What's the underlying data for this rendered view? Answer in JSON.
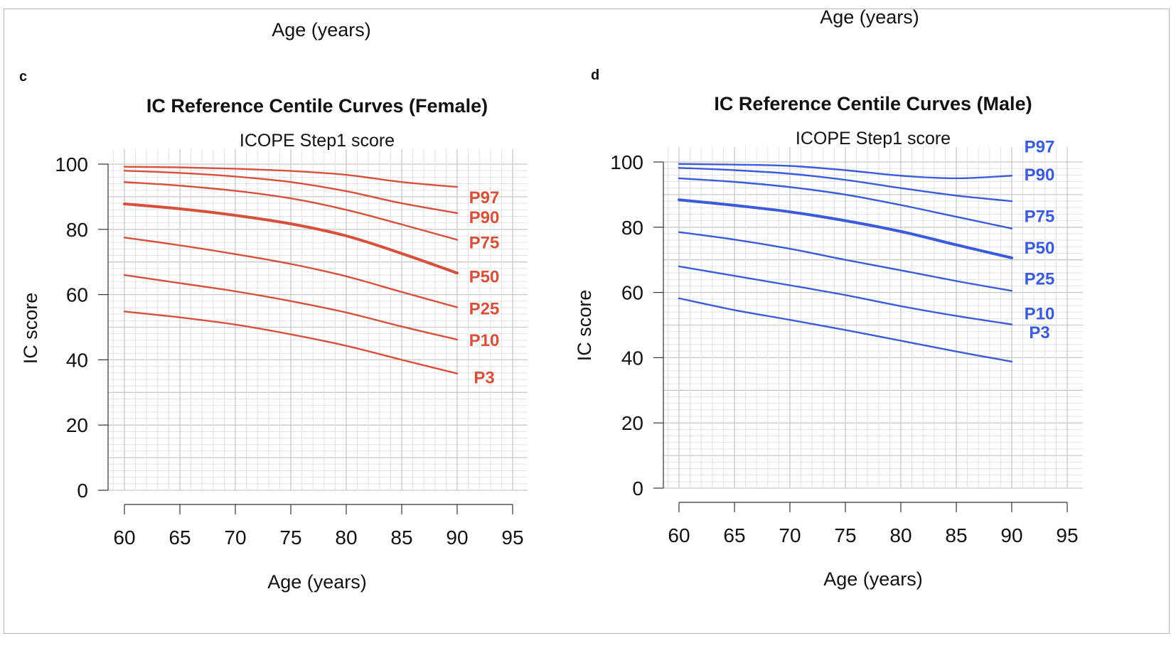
{
  "top_labels": {
    "left": "Age (years)",
    "right": "Age (years)"
  },
  "chart_data": [
    {
      "panel": "c",
      "type": "line",
      "title": "IC Reference Centile Curves (Female)",
      "subtitle": "ICOPE Step1 score",
      "xlabel": "Age (years)",
      "ylabel": "IC score",
      "xlim": [
        60,
        95
      ],
      "ylim": [
        0,
        100
      ],
      "xticks": [
        60,
        65,
        70,
        75,
        80,
        85,
        90,
        95
      ],
      "yticks": [
        0,
        20,
        40,
        60,
        80,
        100
      ],
      "grid": true,
      "color": "#d5513c",
      "x": [
        60,
        65,
        70,
        75,
        80,
        85,
        90
      ],
      "series": [
        {
          "name": "P97",
          "values": [
            99.2,
            99.0,
            98.6,
            97.9,
            96.7,
            94.5,
            93.0
          ],
          "bold": false
        },
        {
          "name": "P90",
          "values": [
            98.0,
            97.3,
            96.2,
            94.5,
            91.7,
            88.0,
            85.0
          ],
          "bold": false
        },
        {
          "name": "P75",
          "values": [
            94.5,
            93.4,
            91.8,
            89.5,
            86.0,
            81.5,
            76.8
          ],
          "bold": false
        },
        {
          "name": "P50",
          "values": [
            87.8,
            86.3,
            84.3,
            81.7,
            78.0,
            72.6,
            66.6
          ],
          "bold": true
        },
        {
          "name": "P25",
          "values": [
            77.5,
            75.1,
            72.4,
            69.4,
            65.6,
            60.8,
            56.1
          ],
          "bold": false
        },
        {
          "name": "P10",
          "values": [
            66.0,
            63.5,
            61.0,
            58.0,
            54.5,
            50.2,
            46.2
          ],
          "bold": false
        },
        {
          "name": "P3",
          "values": [
            54.8,
            53.0,
            50.8,
            47.8,
            44.3,
            40.0,
            35.8
          ],
          "bold": false
        }
      ]
    },
    {
      "panel": "d",
      "type": "line",
      "title": "IC Reference Centile Curves (Male)",
      "subtitle": "ICOPE Step1 score",
      "xlabel": "Age (years)",
      "ylabel": "IC score",
      "xlim": [
        60,
        95
      ],
      "ylim": [
        0,
        100
      ],
      "xticks": [
        60,
        65,
        70,
        75,
        80,
        85,
        90,
        95
      ],
      "yticks": [
        0,
        20,
        40,
        60,
        80,
        100
      ],
      "grid": true,
      "color": "#3b5bdb",
      "x": [
        60,
        65,
        70,
        75,
        80,
        85,
        90
      ],
      "series": [
        {
          "name": "P97",
          "values": [
            99.4,
            99.2,
            98.8,
            97.5,
            95.8,
            95.0,
            95.8
          ],
          "bold": false
        },
        {
          "name": "P90",
          "values": [
            98.2,
            97.5,
            96.4,
            94.5,
            92.0,
            89.7,
            88.0
          ],
          "bold": false
        },
        {
          "name": "P75",
          "values": [
            95.0,
            93.9,
            92.3,
            90.0,
            86.8,
            83.2,
            79.6
          ],
          "bold": false
        },
        {
          "name": "P50",
          "values": [
            88.4,
            86.7,
            84.7,
            82.0,
            78.7,
            74.6,
            70.6
          ],
          "bold": true
        },
        {
          "name": "P25",
          "values": [
            78.5,
            76.2,
            73.4,
            70.0,
            66.8,
            63.5,
            60.5
          ],
          "bold": false
        },
        {
          "name": "P10",
          "values": [
            68.0,
            65.1,
            62.2,
            59.2,
            55.8,
            52.8,
            50.2
          ],
          "bold": false
        },
        {
          "name": "P3",
          "values": [
            58.2,
            54.6,
            51.6,
            48.5,
            45.2,
            41.9,
            38.8
          ],
          "bold": false
        }
      ]
    }
  ]
}
